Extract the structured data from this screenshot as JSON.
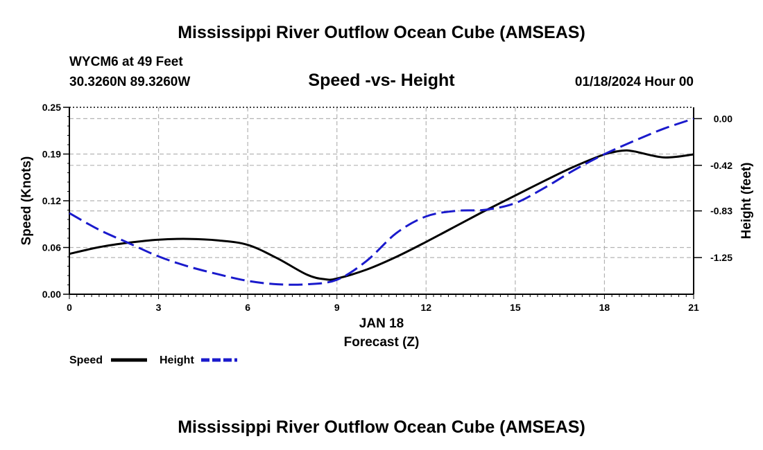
{
  "header": {
    "title": "Mississippi River Outflow Ocean Cube (AMSEAS)",
    "station": "WYCM6 at 49 Feet",
    "coords": "30.3260N  89.3260W",
    "date": "01/18/2024 Hour 00"
  },
  "footer": {
    "title": "Mississippi River Outflow Ocean Cube (AMSEAS)"
  },
  "chart_data": {
    "type": "line",
    "title": "Speed -vs- Height",
    "xlabel": "Forecast (Z)",
    "xlabel_date": "JAN 18",
    "ylabel_left": "Speed (Knots)",
    "ylabel_right": "Height (feet)",
    "xlim": [
      0,
      21
    ],
    "ylim_left": [
      0,
      0.25
    ],
    "ylim_right": [
      -1.58,
      0.102
    ],
    "x_ticks": [
      0,
      3,
      6,
      9,
      12,
      15,
      18,
      21
    ],
    "x_tick_labels": [
      "0",
      "3",
      "6",
      "9",
      "12",
      "15",
      "18",
      "21"
    ],
    "y_left_ticks": [
      0,
      0.0625,
      0.125,
      0.1875,
      0.25
    ],
    "y_left_tick_labels": [
      "0.00",
      "0.06",
      "0.12",
      "0.19",
      "0.25"
    ],
    "y_right_ticks": [
      0,
      -0.42,
      -0.83,
      -1.25
    ],
    "y_right_tick_labels": [
      "0.00",
      "-0.42",
      "-0.83",
      "-1.25"
    ],
    "grid": true,
    "legend": {
      "speed_label": "Speed",
      "height_label": "Height",
      "position": "bottom-left"
    },
    "colors": {
      "speed": "#000000",
      "height": "#1a1acc",
      "grid": "#b3b3b3"
    },
    "series": [
      {
        "name": "Speed",
        "axis": "left",
        "style": "solid",
        "x": [
          0,
          1,
          2,
          3,
          4,
          5,
          6,
          7,
          8,
          8.6,
          9,
          10,
          11,
          12,
          13,
          14,
          15,
          16,
          17,
          18,
          18.6,
          19,
          20,
          21
        ],
        "values": [
          0.054,
          0.063,
          0.069,
          0.073,
          0.074,
          0.072,
          0.066,
          0.048,
          0.026,
          0.02,
          0.021,
          0.033,
          0.05,
          0.07,
          0.091,
          0.112,
          0.132,
          0.152,
          0.171,
          0.187,
          0.192,
          0.191,
          0.183,
          0.187
        ]
      },
      {
        "name": "Height",
        "axis": "right",
        "style": "dashed",
        "x": [
          0,
          1,
          2,
          3,
          4,
          5,
          6,
          7,
          8,
          9,
          10,
          11,
          12,
          13,
          14,
          15,
          16,
          17,
          18,
          19,
          20,
          21
        ],
        "values": [
          -0.85,
          -1.0,
          -1.12,
          -1.24,
          -1.33,
          -1.4,
          -1.46,
          -1.49,
          -1.49,
          -1.45,
          -1.28,
          -1.03,
          -0.88,
          -0.83,
          -0.82,
          -0.76,
          -0.62,
          -0.46,
          -0.32,
          -0.2,
          -0.09,
          0.0
        ]
      }
    ]
  }
}
